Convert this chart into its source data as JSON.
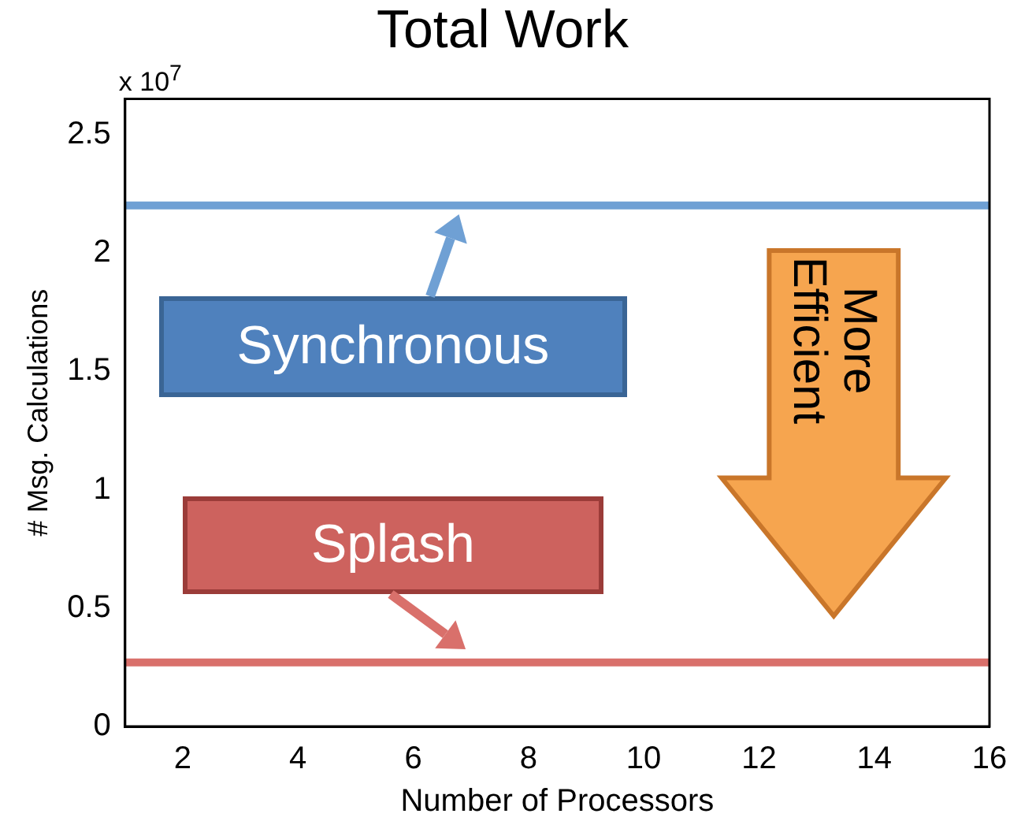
{
  "chart_data": {
    "type": "line",
    "title": "Total Work",
    "xlabel": "Number of Processors",
    "ylabel": "# Msg. Calculations",
    "xlim": [
      1,
      16
    ],
    "xticks": [
      2,
      4,
      6,
      8,
      10,
      12,
      14,
      16
    ],
    "ylim": [
      0,
      2.65
    ],
    "yticks": [
      0,
      0.5,
      1,
      1.5,
      2,
      2.5
    ],
    "grid": false,
    "ref_lines": [
      {
        "axis": "y",
        "value": 2.2,
        "label": "Synchronous",
        "color": "#6fa0d4"
      },
      {
        "axis": "y",
        "value": 0.27,
        "label": "Splash",
        "color": "#d9706b"
      }
    ],
    "annotations": [
      "x 10$^{7}$",
      "More Efficient"
    ]
  }
}
